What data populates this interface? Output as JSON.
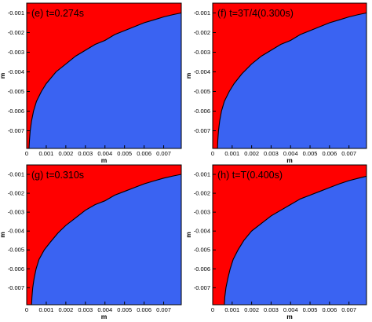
{
  "colors": {
    "air": "#ff0000",
    "water": "#3a63f2",
    "interface": "#000000",
    "frame": "#000000",
    "text": "#000000"
  },
  "chart_data": [
    {
      "type": "area",
      "panel_label": "(e) t=0.274s",
      "xlabel": "m",
      "ylabel": "m",
      "xlim": [
        0,
        0.0079
      ],
      "ylim": [
        -0.0079,
        -0.0005
      ],
      "xticks": [
        "0",
        "0.001",
        "0.002",
        "0.003",
        "0.004",
        "0.005",
        "0.006",
        "0.007"
      ],
      "yticks": [
        "-0.001",
        "-0.002",
        "-0.003",
        "-0.004",
        "-0.005",
        "-0.006",
        "-0.007"
      ],
      "series": [
        {
          "x": [
            0.00012,
            0.00014,
            0.00018,
            0.00025,
            0.00035,
            0.0005,
            0.00075,
            0.001,
            0.0015,
            0.002,
            0.0025,
            0.003,
            0.0035,
            0.004,
            0.0045,
            0.005,
            0.0055,
            0.006,
            0.0065,
            0.007,
            0.0075,
            0.0079
          ],
          "y": [
            -0.0079,
            -0.0075,
            -0.007,
            -0.0065,
            -0.006,
            -0.0055,
            -0.005,
            -0.0046,
            -0.004,
            -0.0036,
            -0.0032,
            -0.0029,
            -0.0026,
            -0.0024,
            -0.0021,
            -0.0019,
            -0.0017,
            -0.0015,
            -0.00135,
            -0.0012,
            -0.00108,
            -0.001
          ]
        }
      ]
    },
    {
      "type": "area",
      "panel_label": "(f) t=3T/4(0.300s)",
      "xlabel": "m",
      "ylabel": "m",
      "xlim": [
        0,
        0.0079
      ],
      "ylim": [
        -0.0079,
        -0.0005
      ],
      "xticks": [
        "0",
        "0.001",
        "0.002",
        "0.003",
        "0.004",
        "0.005",
        "0.006",
        "0.007"
      ],
      "yticks": [
        "-0.001",
        "-0.002",
        "-0.003",
        "-0.004",
        "-0.005",
        "-0.006",
        "-0.007"
      ],
      "series": [
        {
          "x": [
            0.00025,
            0.00026,
            0.0003,
            0.00036,
            0.00045,
            0.0006,
            0.00085,
            0.0011,
            0.0015,
            0.002,
            0.0025,
            0.003,
            0.0035,
            0.004,
            0.0045,
            0.005,
            0.0055,
            0.006,
            0.0065,
            0.007,
            0.0075,
            0.0079
          ],
          "y": [
            -0.0079,
            -0.0075,
            -0.007,
            -0.0065,
            -0.006,
            -0.0055,
            -0.005,
            -0.0046,
            -0.0041,
            -0.0036,
            -0.0032,
            -0.0029,
            -0.0026,
            -0.0024,
            -0.0021,
            -0.0019,
            -0.0017,
            -0.0015,
            -0.00135,
            -0.0012,
            -0.00108,
            -0.001
          ]
        }
      ]
    },
    {
      "type": "area",
      "panel_label": "(g) t=0.310s",
      "xlabel": "m",
      "ylabel": "m",
      "xlim": [
        0,
        0.0079
      ],
      "ylim": [
        -0.0079,
        -0.0005
      ],
      "xticks": [
        "0",
        "0.001",
        "0.002",
        "0.003",
        "0.004",
        "0.005",
        "0.006",
        "0.007"
      ],
      "yticks": [
        "-0.001",
        "-0.002",
        "-0.003",
        "-0.004",
        "-0.005",
        "-0.006",
        "-0.007"
      ],
      "series": [
        {
          "x": [
            0.00025,
            0.00027,
            0.00031,
            0.00038,
            0.00048,
            0.00063,
            0.0009,
            0.0012,
            0.0016,
            0.002,
            0.0025,
            0.003,
            0.0035,
            0.004,
            0.0045,
            0.005,
            0.0055,
            0.006,
            0.0065,
            0.007,
            0.0075,
            0.0079
          ],
          "y": [
            -0.0079,
            -0.0075,
            -0.007,
            -0.0065,
            -0.006,
            -0.0055,
            -0.005,
            -0.0046,
            -0.0041,
            -0.0037,
            -0.0033,
            -0.0029,
            -0.0026,
            -0.0024,
            -0.0021,
            -0.0019,
            -0.0017,
            -0.0015,
            -0.00135,
            -0.0012,
            -0.00108,
            -0.001
          ]
        }
      ]
    },
    {
      "type": "area",
      "panel_label": "(h) t=T(0.400s)",
      "xlabel": "m",
      "ylabel": "m",
      "xlim": [
        0,
        0.0079
      ],
      "ylim": [
        -0.0079,
        -0.0005
      ],
      "xticks": [
        "0",
        "0.001",
        "0.002",
        "0.003",
        "0.004",
        "0.005",
        "0.006",
        "0.007"
      ],
      "yticks": [
        "-0.001",
        "-0.002",
        "-0.003",
        "-0.004",
        "-0.005",
        "-0.006",
        "-0.007"
      ],
      "series": [
        {
          "x": [
            0.0006,
            0.00062,
            0.00068,
            0.00078,
            0.0009,
            0.00105,
            0.0013,
            0.0016,
            0.002,
            0.0025,
            0.003,
            0.0035,
            0.004,
            0.0045,
            0.005,
            0.0055,
            0.006,
            0.0065,
            0.007,
            0.0075,
            0.0079
          ],
          "y": [
            -0.0079,
            -0.0075,
            -0.007,
            -0.0065,
            -0.006,
            -0.0055,
            -0.005,
            -0.0045,
            -0.004,
            -0.0036,
            -0.0032,
            -0.0029,
            -0.0026,
            -0.0023,
            -0.0021,
            -0.0019,
            -0.0017,
            -0.0015,
            -0.00133,
            -0.0012,
            -0.0011
          ]
        }
      ]
    }
  ]
}
